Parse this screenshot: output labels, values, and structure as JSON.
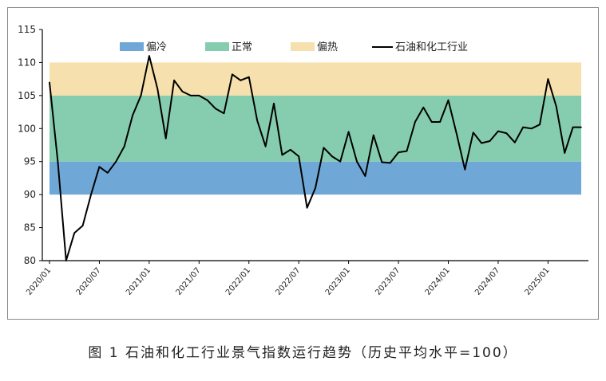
{
  "caption": "图 1  石油和化工行业景气指数运行趋势（历史平均水平=100）",
  "chart_data": {
    "type": "line",
    "title": "",
    "xlabel": "",
    "ylabel": "",
    "ylim": [
      80,
      115
    ],
    "yticks": [
      80,
      85,
      90,
      95,
      100,
      105,
      110,
      115
    ],
    "grid": false,
    "legend_position": "top",
    "bands": [
      {
        "name": "偏冷",
        "from": 90,
        "to": 95,
        "color": "#6fa8d6"
      },
      {
        "name": "正常",
        "from": 95,
        "to": 105,
        "color": "#86cdb0"
      },
      {
        "name": "偏热",
        "from": 105,
        "to": 110,
        "color": "#f6e0ad"
      }
    ],
    "x_tick_labels": [
      "2020/01",
      "2020/07",
      "2021/01",
      "2021/07",
      "2022/01",
      "2022/07",
      "2023/01",
      "2023/07",
      "2024/01",
      "2024/07",
      "2025/01"
    ],
    "series": [
      {
        "name": "石油和化工行业",
        "color": "#000000",
        "x": [
          "2020/01",
          "2020/02",
          "2020/03",
          "2020/04",
          "2020/05",
          "2020/06",
          "2020/07",
          "2020/08",
          "2020/09",
          "2020/10",
          "2020/11",
          "2020/12",
          "2021/01",
          "2021/02",
          "2021/03",
          "2021/04",
          "2021/05",
          "2021/06",
          "2021/07",
          "2021/08",
          "2021/09",
          "2021/10",
          "2021/11",
          "2021/12",
          "2022/01",
          "2022/02",
          "2022/03",
          "2022/04",
          "2022/05",
          "2022/06",
          "2022/07",
          "2022/08",
          "2022/09",
          "2022/10",
          "2022/11",
          "2022/12",
          "2023/01",
          "2023/02",
          "2023/03",
          "2023/04",
          "2023/05",
          "2023/06",
          "2023/07",
          "2023/08",
          "2023/09",
          "2023/10",
          "2023/11",
          "2023/12",
          "2024/01",
          "2024/02",
          "2024/03",
          "2024/04",
          "2024/05",
          "2024/06",
          "2024/07",
          "2024/08",
          "2024/09",
          "2024/10",
          "2024/11",
          "2024/12",
          "2025/01",
          "2025/02",
          "2025/03",
          "2025/04",
          "2025/05"
        ],
        "values": [
          107.0,
          95.0,
          80.0,
          84.2,
          85.3,
          90.0,
          94.2,
          93.3,
          95.0,
          97.3,
          102.0,
          105.0,
          111.0,
          106.0,
          98.5,
          107.3,
          105.6,
          105.0,
          105.0,
          104.3,
          103.0,
          102.3,
          108.2,
          107.3,
          107.8,
          101.2,
          97.3,
          103.8,
          96.0,
          96.8,
          95.8,
          88.0,
          91.0,
          97.1,
          95.8,
          95.0,
          99.5,
          95.0,
          92.8,
          99.0,
          94.9,
          94.8,
          96.4,
          96.6,
          101.0,
          103.2,
          101.0,
          101.0,
          104.3,
          99.2,
          93.8,
          99.4,
          97.8,
          98.1,
          99.6,
          99.3,
          97.9,
          100.2,
          100.0,
          100.6,
          107.5,
          103.3,
          96.3,
          100.2,
          100.2
        ]
      }
    ]
  }
}
